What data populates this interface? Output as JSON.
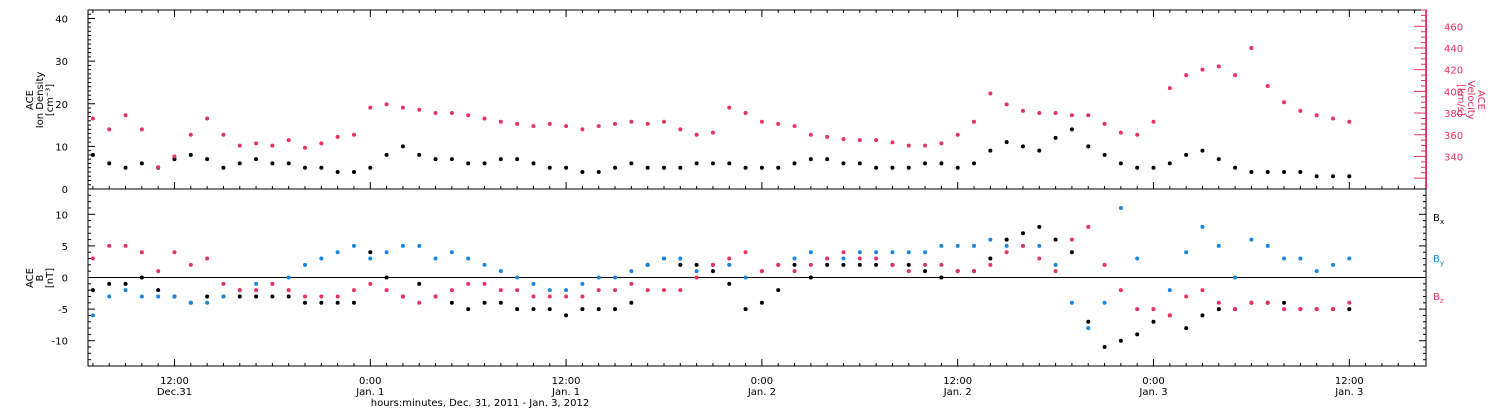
{
  "colors": {
    "black": "#000000",
    "red": "#e8325f",
    "blue": "#1a86e0"
  },
  "footer_title": "hours:minutes, Dec. 31, 2011 - Jan. 3, 2012",
  "chart_data": [
    {
      "type": "scatter",
      "panel": "top",
      "ylabel_left_lines": [
        "ACE",
        "Ion Density",
        "[cm⁻³]"
      ],
      "ylabel_right_lines": [
        "ACE",
        "Velocity",
        "[km/s]"
      ],
      "ylim_left": [
        0,
        42
      ],
      "yticks_left": [
        0,
        10,
        20,
        30,
        40
      ],
      "ylim_right": [
        310,
        475
      ],
      "yticks_right": [
        340,
        360,
        380,
        400,
        420,
        440,
        460
      ],
      "x_unit": "hours since Dec. 31, 2011 00:00",
      "xlim": [
        6.7,
        88.7
      ],
      "series": [
        {
          "name": "Ion Density",
          "axis": "left",
          "color": "#000000",
          "x": [
            7,
            8,
            9,
            10,
            11,
            12,
            13,
            14,
            15,
            16,
            17,
            18,
            19,
            20,
            21,
            22,
            23,
            24,
            25,
            26,
            27,
            28,
            29,
            30,
            31,
            32,
            33,
            34,
            35,
            36,
            37,
            38,
            39,
            40,
            41,
            42,
            43,
            44,
            45,
            46,
            47,
            48,
            49,
            50,
            51,
            52,
            53,
            54,
            55,
            56,
            57,
            58,
            59,
            60,
            61,
            62,
            63,
            64,
            65,
            66,
            67,
            68,
            69,
            70,
            71,
            72,
            73,
            74,
            75,
            76,
            77,
            78,
            79,
            80,
            81,
            82,
            83,
            84
          ],
          "y": [
            8,
            6,
            5,
            6,
            5,
            7,
            8,
            7,
            5,
            6,
            7,
            6,
            6,
            5,
            5,
            4,
            4,
            5,
            8,
            10,
            8,
            7,
            7,
            6,
            6,
            7,
            7,
            6,
            5,
            5,
            4,
            4,
            5,
            6,
            5,
            5,
            5,
            6,
            6,
            6,
            5,
            5,
            5,
            6,
            7,
            7,
            6,
            6,
            5,
            5,
            5,
            6,
            6,
            5,
            6,
            9,
            11,
            10,
            9,
            12,
            14,
            10,
            8,
            6,
            5,
            5,
            6,
            8,
            9,
            7,
            5,
            4,
            4,
            4,
            4,
            3,
            3,
            3
          ]
        },
        {
          "name": "Velocity",
          "axis": "right",
          "color": "#e8325f",
          "x": [
            7,
            8,
            9,
            10,
            11,
            12,
            13,
            14,
            15,
            16,
            17,
            18,
            19,
            20,
            21,
            22,
            23,
            24,
            25,
            26,
            27,
            28,
            29,
            30,
            31,
            32,
            33,
            34,
            35,
            36,
            37,
            38,
            39,
            40,
            41,
            42,
            43,
            44,
            45,
            46,
            47,
            48,
            49,
            50,
            51,
            52,
            53,
            54,
            55,
            56,
            57,
            58,
            59,
            60,
            61,
            62,
            63,
            64,
            65,
            66,
            67,
            68,
            69,
            70,
            71,
            72,
            73,
            74,
            75,
            76,
            77,
            78,
            79,
            80,
            81,
            82,
            83,
            84
          ],
          "y": [
            375,
            365,
            378,
            365,
            330,
            340,
            360,
            375,
            360,
            350,
            352,
            350,
            355,
            348,
            352,
            358,
            360,
            385,
            388,
            385,
            383,
            380,
            380,
            378,
            375,
            372,
            370,
            368,
            370,
            368,
            365,
            368,
            370,
            372,
            370,
            372,
            365,
            360,
            362,
            385,
            380,
            372,
            370,
            368,
            360,
            358,
            356,
            355,
            355,
            353,
            350,
            350,
            352,
            360,
            372,
            398,
            388,
            382,
            380,
            380,
            378,
            378,
            370,
            362,
            360,
            372,
            403,
            415,
            420,
            423,
            415,
            440,
            405,
            390,
            382,
            378,
            375,
            372
          ]
        }
      ]
    },
    {
      "type": "scatter",
      "panel": "bottom",
      "ylabel_left_lines": [
        "ACE",
        "B",
        "[nT]"
      ],
      "ylim": [
        -14,
        14
      ],
      "yticks": [
        -10,
        -5,
        0,
        5,
        10
      ],
      "zero_line": true,
      "x_unit": "hours since Dec. 31, 2011 00:00",
      "xlim": [
        6.7,
        88.7
      ],
      "legend_placement": "right",
      "series": [
        {
          "name": "Bx",
          "label_main": "B",
          "label_sub": "x",
          "color": "#000000",
          "x": [
            7,
            8,
            9,
            10,
            11,
            12,
            13,
            14,
            15,
            16,
            17,
            18,
            19,
            20,
            21,
            22,
            23,
            24,
            25,
            26,
            27,
            28,
            29,
            30,
            31,
            32,
            33,
            34,
            35,
            36,
            37,
            38,
            39,
            40,
            41,
            42,
            43,
            44,
            45,
            46,
            47,
            48,
            49,
            50,
            51,
            52,
            53,
            54,
            55,
            56,
            57,
            58,
            59,
            60,
            61,
            62,
            63,
            64,
            65,
            66,
            67,
            68,
            69,
            70,
            71,
            72,
            73,
            74,
            75,
            76,
            77,
            78,
            79,
            80,
            81,
            82,
            83,
            84
          ],
          "y": [
            -2,
            -1,
            -1,
            0,
            -2,
            -3,
            -4,
            -3,
            -3,
            -3,
            -3,
            -3,
            -3,
            -4,
            -4,
            -4,
            -4,
            4,
            0,
            -3,
            -1,
            -3,
            -4,
            -5,
            -4,
            -4,
            -5,
            -5,
            -5,
            -6,
            -5,
            -5,
            -5,
            -4,
            2,
            3,
            2,
            2,
            1,
            -1,
            -5,
            -4,
            -2,
            2,
            0,
            2,
            2,
            2,
            2,
            2,
            2,
            1,
            0,
            1,
            1,
            3,
            6,
            7,
            8,
            6,
            4,
            -7,
            -11,
            -10,
            -9,
            -7,
            -6,
            -8,
            -6,
            -5,
            -5,
            -4,
            -4,
            -4,
            -5,
            -5,
            -5,
            -5
          ]
        },
        {
          "name": "By",
          "label_main": "B",
          "label_sub": "y",
          "color": "#1a86e0",
          "x": [
            7,
            8,
            9,
            10,
            11,
            12,
            13,
            14,
            15,
            16,
            17,
            18,
            19,
            20,
            21,
            22,
            23,
            24,
            25,
            26,
            27,
            28,
            29,
            30,
            31,
            32,
            33,
            34,
            35,
            36,
            37,
            38,
            39,
            40,
            41,
            42,
            43,
            44,
            45,
            46,
            47,
            48,
            49,
            50,
            51,
            52,
            53,
            54,
            55,
            56,
            57,
            58,
            59,
            60,
            61,
            62,
            63,
            64,
            65,
            66,
            67,
            68,
            69,
            70,
            71,
            72,
            73,
            74,
            75,
            76,
            77,
            78,
            79,
            80,
            81,
            82,
            83,
            84
          ],
          "y": [
            -6,
            -3,
            -2,
            -3,
            -3,
            -3,
            -4,
            -4,
            -3,
            -2,
            -1,
            -1,
            0,
            2,
            3,
            4,
            5,
            3,
            4,
            5,
            5,
            3,
            4,
            3,
            2,
            1,
            0,
            -1,
            -2,
            -2,
            -1,
            0,
            0,
            1,
            2,
            3,
            3,
            1,
            2,
            2,
            0,
            1,
            2,
            3,
            4,
            3,
            3,
            4,
            4,
            4,
            4,
            4,
            5,
            5,
            5,
            6,
            5,
            5,
            5,
            2,
            -4,
            -8,
            -4,
            11,
            3,
            -5,
            -2,
            4,
            8,
            5,
            0,
            6,
            5,
            3,
            3,
            1,
            2,
            3
          ]
        },
        {
          "name": "Bz",
          "label_main": "B",
          "label_sub": "z",
          "color": "#e8325f",
          "x": [
            7,
            8,
            9,
            10,
            11,
            12,
            13,
            14,
            15,
            16,
            17,
            18,
            19,
            20,
            21,
            22,
            23,
            24,
            25,
            26,
            27,
            28,
            29,
            30,
            31,
            32,
            33,
            34,
            35,
            36,
            37,
            38,
            39,
            40,
            41,
            42,
            43,
            44,
            45,
            46,
            47,
            48,
            49,
            50,
            51,
            52,
            53,
            54,
            55,
            56,
            57,
            58,
            59,
            60,
            61,
            62,
            63,
            64,
            65,
            66,
            67,
            68,
            69,
            70,
            71,
            72,
            73,
            74,
            75,
            76,
            77,
            78,
            79,
            80,
            81,
            82,
            83,
            84
          ],
          "y": [
            3,
            5,
            5,
            4,
            1,
            4,
            2,
            3,
            -1,
            -2,
            -2,
            -1,
            -2,
            -3,
            -3,
            -3,
            -2,
            -1,
            -2,
            -3,
            -4,
            -3,
            -2,
            -1,
            -1,
            -2,
            -2,
            -3,
            -3,
            -3,
            -3,
            -2,
            -2,
            -1,
            -2,
            -2,
            -2,
            0,
            2,
            3,
            4,
            1,
            2,
            1,
            2,
            3,
            4,
            3,
            3,
            2,
            1,
            2,
            2,
            1,
            1,
            2,
            4,
            5,
            3,
            1,
            6,
            8,
            2,
            -2,
            -5,
            -5,
            -6,
            -3,
            -2,
            -4,
            -5,
            -4,
            -4,
            -5,
            -5,
            -5,
            -5,
            -4
          ]
        }
      ]
    }
  ],
  "x_axis": {
    "ticks": [
      {
        "time": "12:00",
        "day": "Dec.31"
      },
      {
        "time": "0:00",
        "day": "Jan. 1"
      },
      {
        "time": "12:00",
        "day": "Jan. 1"
      },
      {
        "time": "0:00",
        "day": "Jan. 2"
      },
      {
        "time": "12:00",
        "day": "Jan. 2"
      },
      {
        "time": "0:00",
        "day": "Jan. 3"
      },
      {
        "time": "12:00",
        "day": "Jan. 3"
      }
    ],
    "tick_hours": [
      12,
      24,
      36,
      48,
      60,
      72,
      84
    ]
  }
}
